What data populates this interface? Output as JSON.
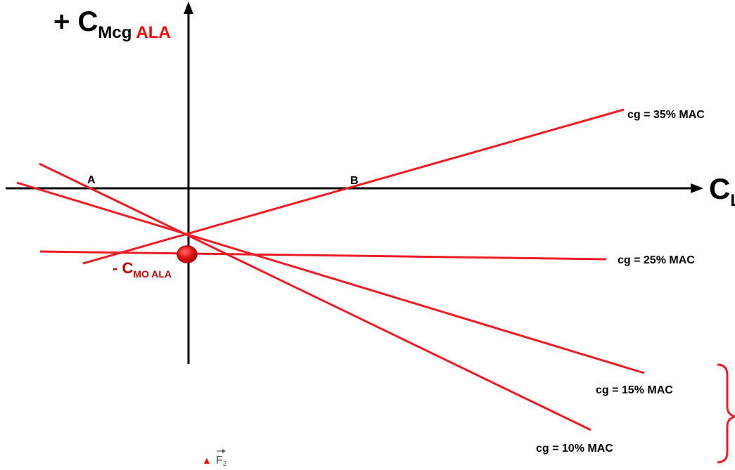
{
  "axes": {
    "y_label": {
      "prefix": "+ C",
      "sub_black": "Mcg",
      "sub_red": "ALA"
    },
    "x_label": {
      "main": "C",
      "sub": "L"
    }
  },
  "points": {
    "a": "A",
    "b": "B"
  },
  "intercept_label": {
    "prefix": "- C",
    "sub": "MO ALA"
  },
  "lines": [
    {
      "label": "cg = 35% MAC"
    },
    {
      "label": "cg = 25% MAC"
    },
    {
      "label": "cg = 15% MAC"
    },
    {
      "label": "cg = 10% MAC"
    }
  ],
  "footer_symbol": {
    "main": "F",
    "sub": "2"
  },
  "colors": {
    "axis": "#000000",
    "line": "#ee1c25",
    "marker": "#e01010",
    "label_red": "#c00000",
    "label_bright_red": "#ff0000"
  }
}
